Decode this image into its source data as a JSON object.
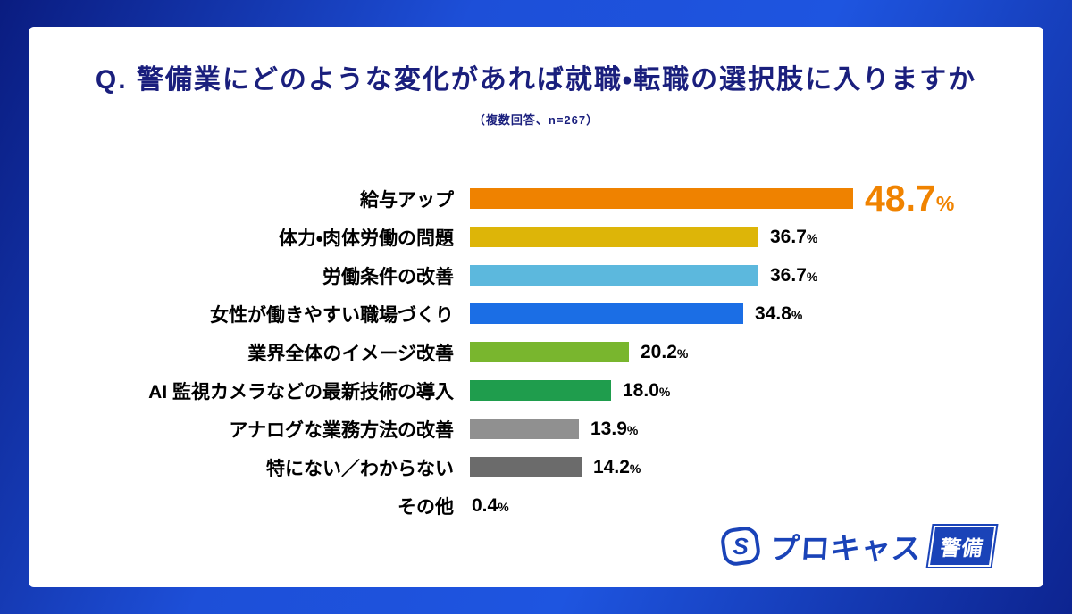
{
  "page": {
    "title": "Q. 警備業にどのような変化があれば就職・転職の選択肢に入りますか",
    "subtitle": "（複数回答、n=267）"
  },
  "chart_data": {
    "type": "bar",
    "orientation": "horizontal",
    "title": "Q. 警備業にどのような変化があれば就職・転職の選択肢に入りますか",
    "subtitle": "（複数回答、n=267）",
    "sample_size": "n=267",
    "unit": "%",
    "categories": [
      "給与アップ",
      "体力・肉体労働の問題",
      "労働条件の改善",
      "女性が働きやすい職場づくり",
      "業界全体のイメージ改善",
      "AI 監視カメラなどの最新技術の導入",
      "アナログな業務方法の改善",
      "特にない／わからない",
      "その他"
    ],
    "values": [
      48.7,
      36.7,
      36.7,
      34.8,
      20.2,
      18.0,
      13.9,
      14.2,
      0.4
    ],
    "bar_colors": [
      "#ef8200",
      "#ddb508",
      "#5cb8dd",
      "#1b6ee5",
      "#79b62e",
      "#1f9d4d",
      "#909090",
      "#6b6b6b",
      "#999999"
    ],
    "xlim": [
      0,
      50
    ],
    "grid": false,
    "legend": "none",
    "highlight_index": 0,
    "highlight_color": "#f08300"
  },
  "footer": {
    "logo_letter": "S",
    "brand": "プロキャス",
    "brand_badge": "警備"
  },
  "theme": {
    "bg_blue": "#1b4ad6",
    "bg_navy": "#0c2188",
    "title_navy": "#1a1f7d",
    "brand_blue": "#1a43b8",
    "highlight_orange": "#f08300",
    "text_black": "#000000",
    "card_white": "#ffffff"
  }
}
